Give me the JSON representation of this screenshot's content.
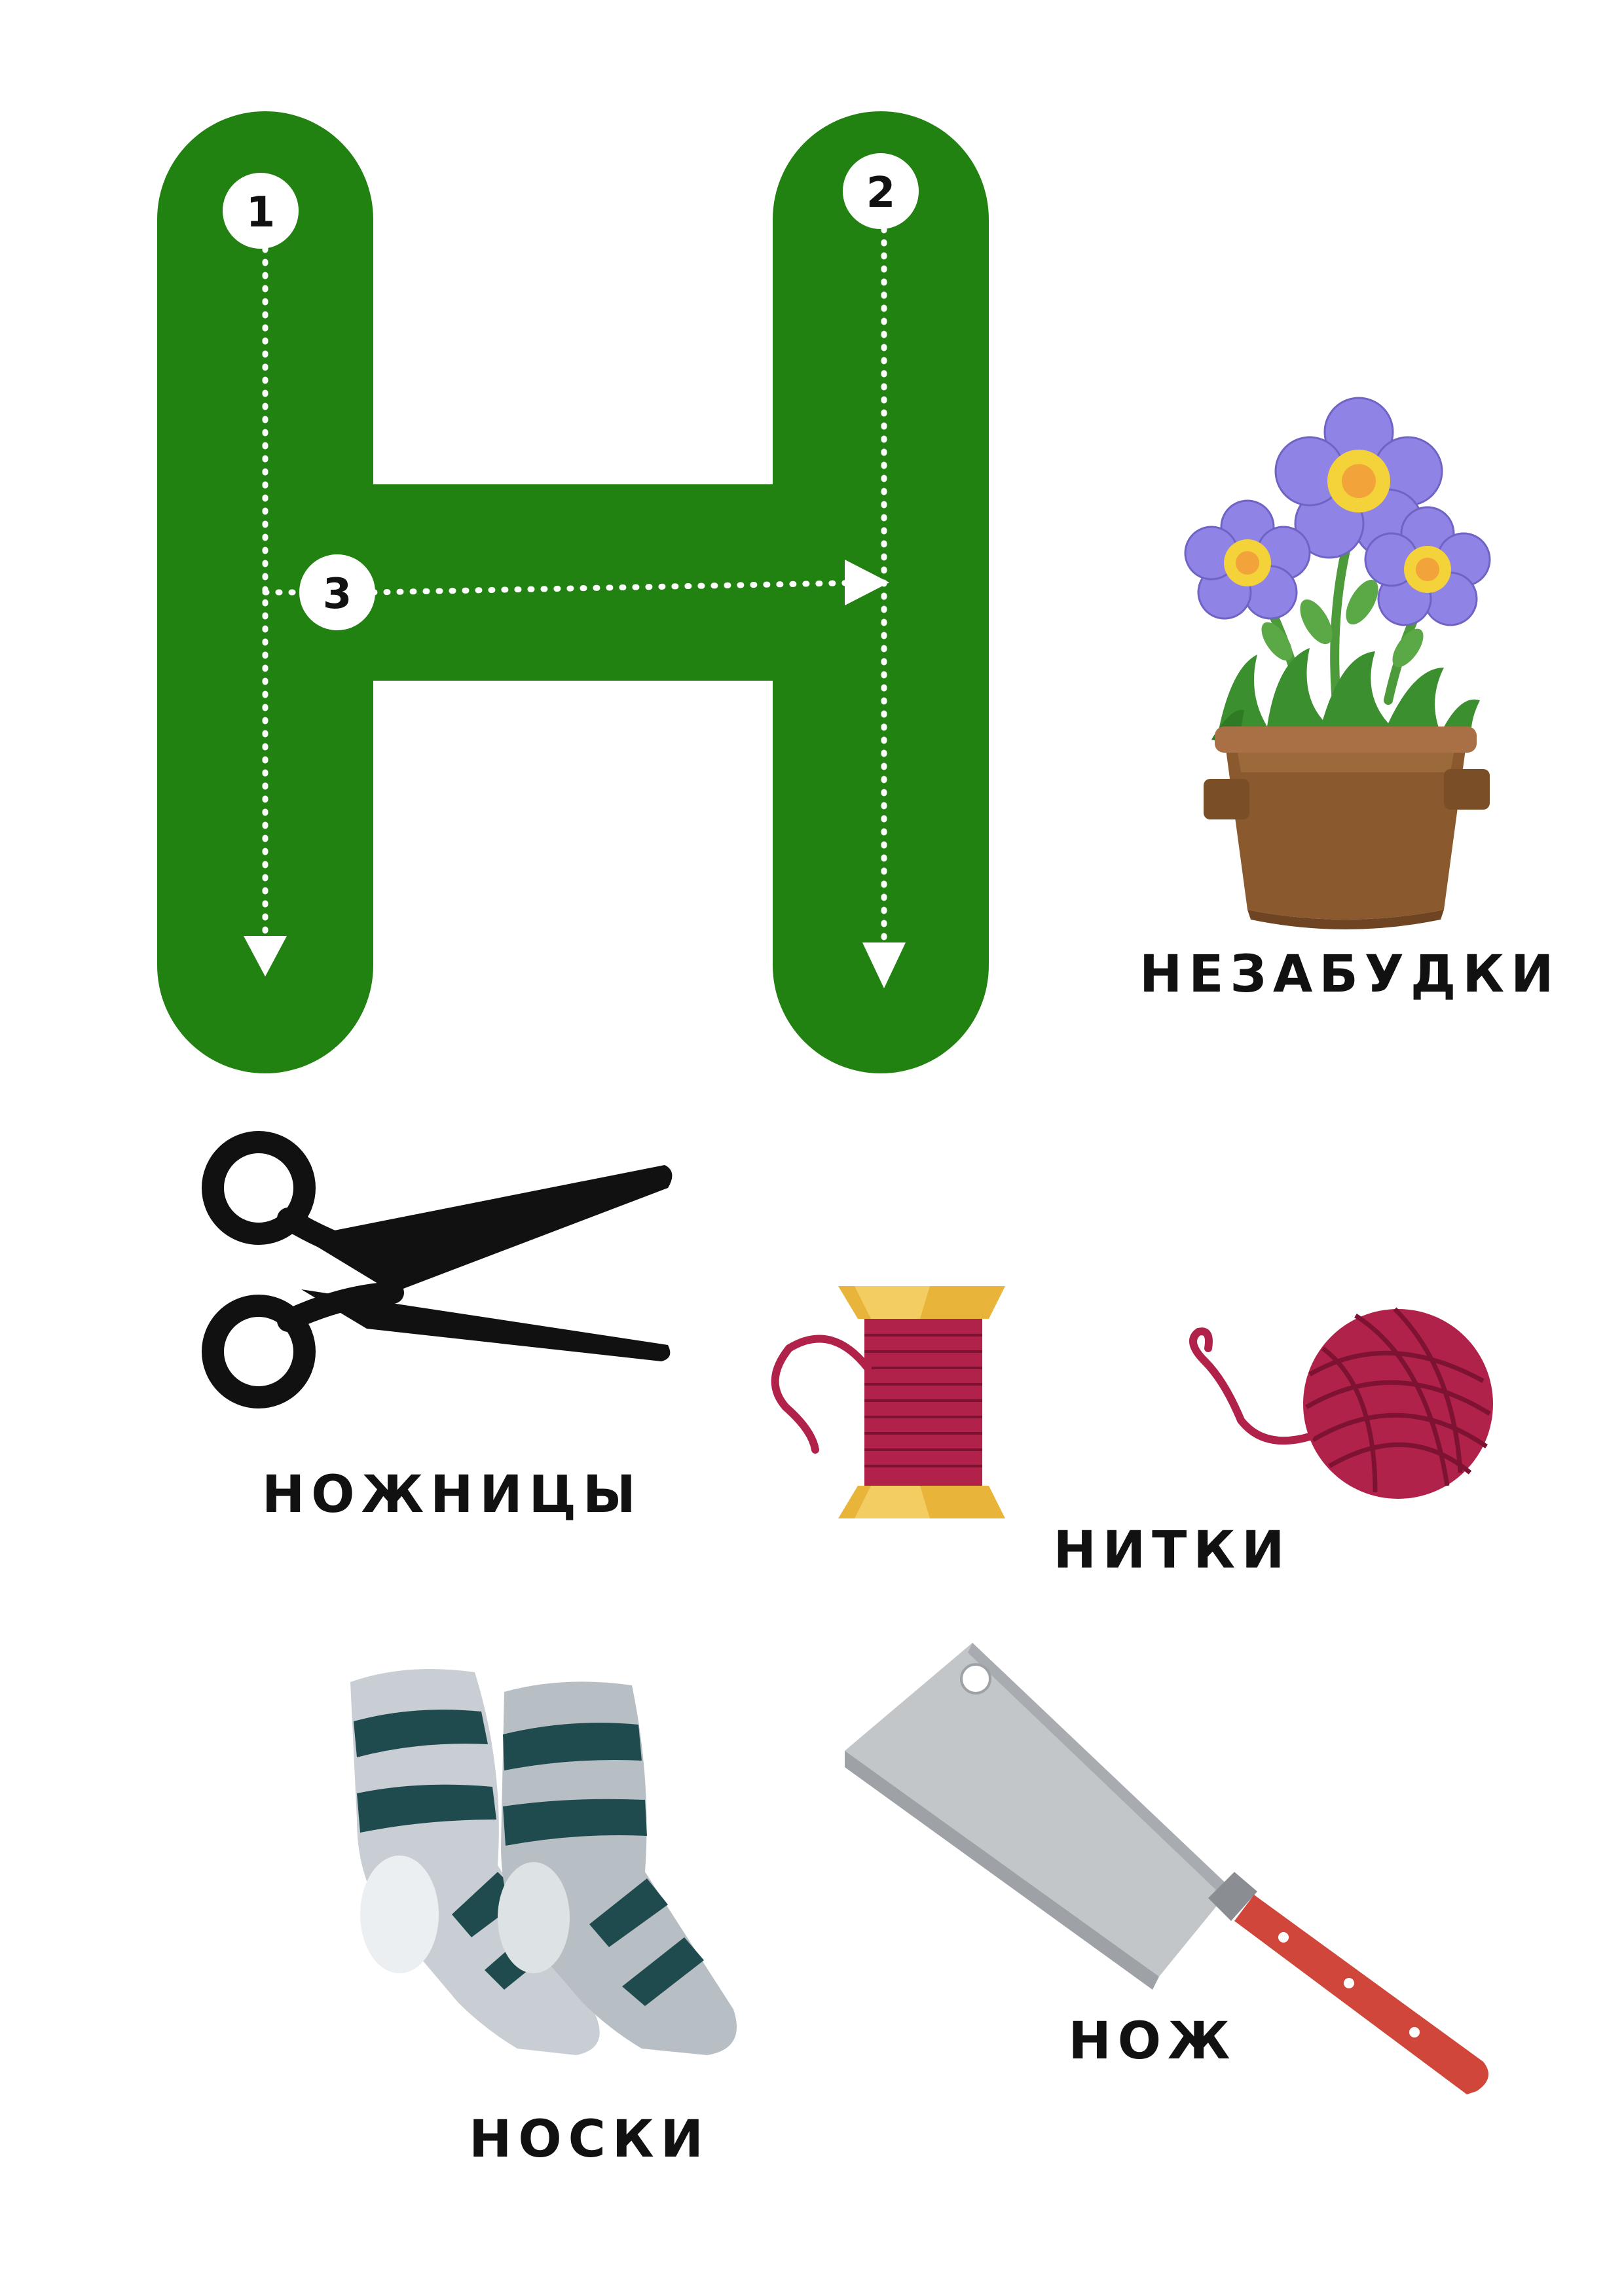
{
  "letter": {
    "glyph": "Н",
    "color": "#228211",
    "stroke_order": [
      "1",
      "2",
      "3"
    ]
  },
  "pictures": [
    {
      "id": "flowers",
      "label": "НЕЗАБУДКИ",
      "icon": "flowerpot-icon"
    },
    {
      "id": "scissors",
      "label": "НОЖНИЦЫ",
      "icon": "scissors-icon"
    },
    {
      "id": "threads",
      "label": "НИТКИ",
      "icon": "thread-spool-and-yarn-ball-icon"
    },
    {
      "id": "socks",
      "label": "НОСКИ",
      "icon": "socks-icon"
    },
    {
      "id": "knife",
      "label": "НОЖ",
      "icon": "cleaver-knife-icon"
    }
  ],
  "colors": {
    "letter_green": "#228211",
    "thread_red": "#b1224a",
    "spool_yellow": "#e8b53a",
    "flower_purple": "#8f84e6",
    "pot_brown": "#8a5a2e",
    "sock_dark": "#1f4a4e",
    "sock_light": "#c8ced3",
    "knife_handle": "#d0463a",
    "blade_grey": "#c3c6c9"
  }
}
